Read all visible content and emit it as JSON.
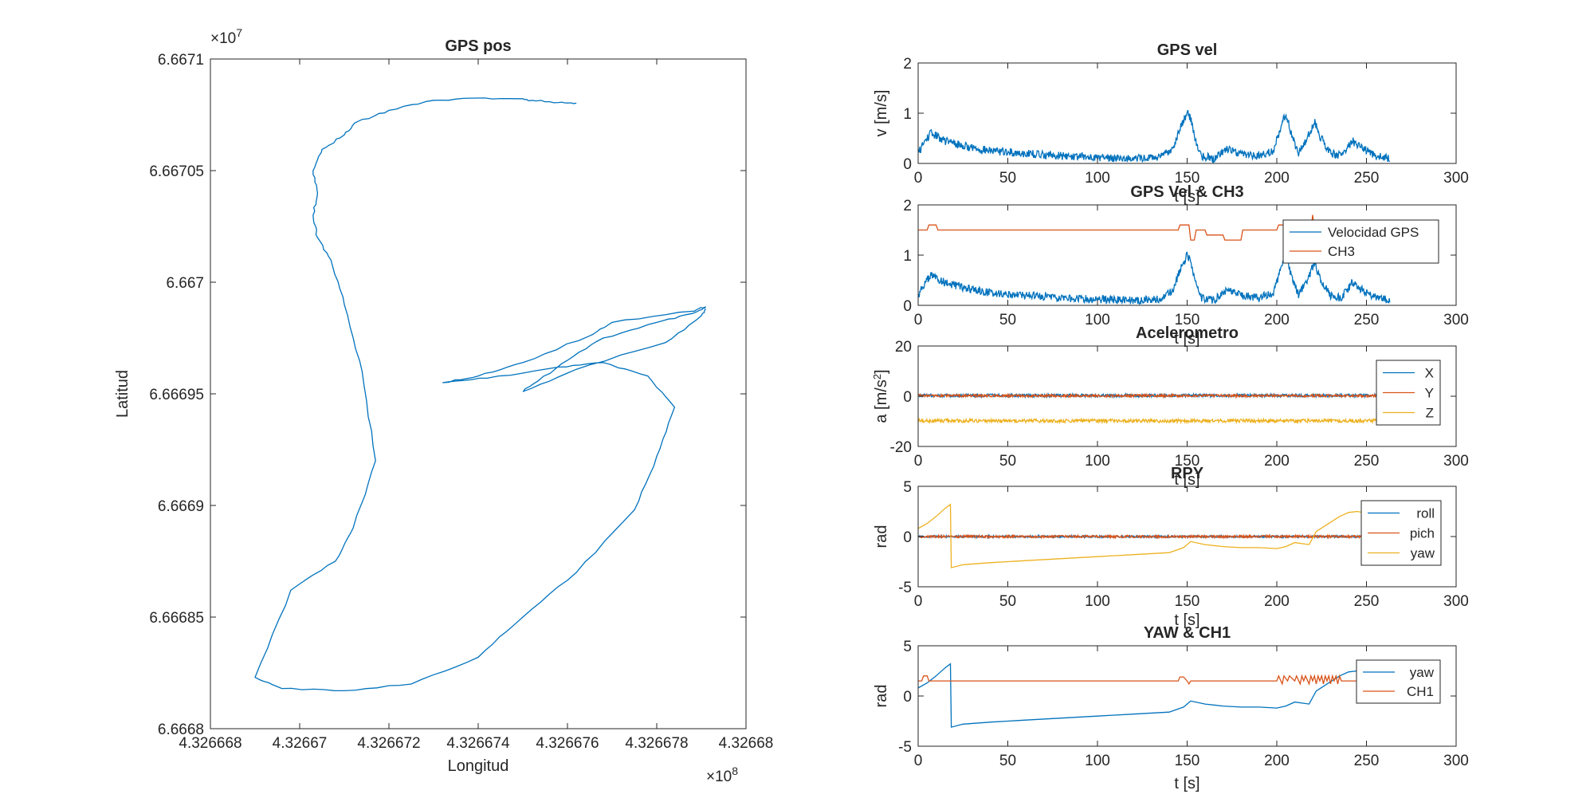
{
  "figure": {
    "colors": {
      "blue": "#0072BD",
      "orange": "#D95319",
      "yellow": "#EDB120",
      "axis": "#262626"
    }
  },
  "chart_data": [
    {
      "id": "gps_pos",
      "type": "line",
      "title": "GPS pos",
      "xlabel": "Longitud",
      "ylabel": "Latitud",
      "x_exponent_label": "×10",
      "x_exponent_power": "8",
      "y_exponent_label": "×10",
      "y_exponent_power": "7",
      "xlim": [
        4.326668,
        4.32668
      ],
      "ylim": [
        6.6668,
        6.6671
      ],
      "xticks": [
        4.326668,
        4.32667,
        4.326672,
        4.326674,
        4.326676,
        4.326678,
        4.32668
      ],
      "xtick_labels": [
        "4.326668",
        "4.32667",
        "4.326672",
        "4.326674",
        "4.326676",
        "4.326678",
        "4.32668"
      ],
      "yticks": [
        6.6668,
        6.66685,
        6.6669,
        6.66695,
        6.667,
        6.66705,
        6.6671
      ],
      "ytick_labels": [
        "6.6668",
        "6.66685",
        "6.6669",
        "6.66695",
        "6.667",
        "6.66705",
        "6.6671"
      ],
      "series": [
        {
          "color": "blue",
          "x": [
            4.3266762,
            4.3266758,
            4.3266752,
            4.326675,
            4.326674,
            4.326673,
            4.326672,
            4.3266713,
            4.326671,
            4.3266705,
            4.3266703,
            4.3266704,
            4.3266703,
            4.3266704,
            4.3266707,
            4.326671,
            4.3266714,
            4.3266717,
            4.3266712,
            4.3266708,
            4.3266698,
            4.326669,
            4.3266696,
            4.326671,
            4.3266725,
            4.326674,
            4.326675,
            4.3266762,
            4.3266775,
            4.326678,
            4.3266784,
            4.3266778,
            4.3266768,
            4.3266758,
            4.3266742,
            4.3266732,
            4.326674,
            4.326675,
            4.3266765,
            4.326677,
            4.3266788,
            4.3266791,
            4.3266788,
            4.326678,
            4.3266768,
            4.326676,
            4.3266752,
            4.326675,
            4.3266762,
            4.3266782,
            4.326679,
            4.3266791
          ],
          "y": [
            6.6670802,
            6.6670805,
            6.6670815,
            6.6670822,
            6.6670825,
            6.6670815,
            6.667077,
            6.667072,
            6.667066,
            6.6670595,
            6.66705,
            6.66704,
            6.66703,
            6.66702,
            6.66701,
            6.66699,
            6.66696,
            6.66692,
            6.66689,
            6.666875,
            6.666862,
            6.666823,
            6.666818,
            6.666817,
            6.66682,
            6.666832,
            6.66685,
            6.66687,
            6.666898,
            6.666922,
            6.666944,
            6.666958,
            6.666964,
            6.666962,
            6.666957,
            6.666955,
            6.666958,
            6.666964,
            6.666976,
            6.666982,
            6.666987,
            6.666989,
            6.666986,
            6.666982,
            6.666975,
            6.666965,
            6.666954,
            6.666951,
            6.666961,
            6.666973,
            6.666985,
            6.666988
          ]
        }
      ]
    },
    {
      "id": "gps_vel",
      "type": "line",
      "title": "GPS vel",
      "xlabel": "t [s]",
      "ylabel": "v [m/s]",
      "xlim": [
        0,
        300
      ],
      "ylim": [
        0,
        2
      ],
      "xticks": [
        0,
        50,
        100,
        150,
        200,
        250,
        300
      ],
      "xtick_labels": [
        "0",
        "50",
        "100",
        "150",
        "200",
        "250",
        "300"
      ],
      "yticks": [
        0,
        1,
        2
      ],
      "ytick_labels": [
        "0",
        "1",
        "2"
      ],
      "series": [
        {
          "color": "blue",
          "noise": 0.08,
          "x": [
            0,
            3,
            7,
            10,
            15,
            25,
            40,
            60,
            80,
            100,
            120,
            135,
            142,
            146,
            150,
            152,
            155,
            158,
            165,
            172,
            180,
            190,
            198,
            203,
            205,
            208,
            212,
            217,
            221,
            224,
            230,
            236,
            242,
            248,
            255,
            263
          ],
          "y": [
            0.2,
            0.4,
            0.6,
            0.55,
            0.45,
            0.35,
            0.25,
            0.2,
            0.15,
            0.12,
            0.1,
            0.12,
            0.3,
            0.7,
            1.0,
            0.9,
            0.4,
            0.15,
            0.1,
            0.3,
            0.2,
            0.15,
            0.25,
            0.8,
            1.0,
            0.6,
            0.2,
            0.5,
            0.85,
            0.55,
            0.2,
            0.15,
            0.45,
            0.3,
            0.15,
            0.1
          ]
        }
      ]
    },
    {
      "id": "gps_vel_ch3",
      "type": "line",
      "title": "GPS Vel & CH3",
      "xlabel": "t [s]",
      "xlim": [
        0,
        300
      ],
      "ylim": [
        0,
        2
      ],
      "xticks": [
        0,
        50,
        100,
        150,
        200,
        250,
        300
      ],
      "xtick_labels": [
        "0",
        "50",
        "100",
        "150",
        "200",
        "250",
        "300"
      ],
      "yticks": [
        0,
        1,
        2
      ],
      "ytick_labels": [
        "0",
        "1",
        "2"
      ],
      "legend_position": "top-right",
      "series": [
        {
          "name": "Velocidad GPS",
          "color": "blue",
          "noise": 0.08,
          "x": [
            0,
            3,
            7,
            10,
            15,
            25,
            40,
            60,
            80,
            100,
            120,
            135,
            142,
            146,
            150,
            152,
            155,
            158,
            165,
            172,
            180,
            190,
            198,
            203,
            205,
            208,
            212,
            217,
            221,
            224,
            230,
            236,
            242,
            248,
            255,
            263
          ],
          "y": [
            0.2,
            0.4,
            0.6,
            0.55,
            0.45,
            0.35,
            0.25,
            0.2,
            0.15,
            0.12,
            0.1,
            0.12,
            0.3,
            0.7,
            1.0,
            0.9,
            0.4,
            0.15,
            0.1,
            0.3,
            0.2,
            0.15,
            0.25,
            0.8,
            1.0,
            0.6,
            0.2,
            0.5,
            0.85,
            0.55,
            0.2,
            0.15,
            0.45,
            0.3,
            0.15,
            0.1
          ]
        },
        {
          "name": "CH3",
          "color": "orange",
          "x": [
            0,
            5,
            6,
            10,
            11,
            145,
            146,
            151,
            152,
            154,
            155,
            160,
            161,
            170,
            171,
            180,
            181,
            200,
            201,
            215,
            216,
            219,
            220,
            221,
            263
          ],
          "y": [
            1.5,
            1.5,
            1.6,
            1.6,
            1.5,
            1.5,
            1.6,
            1.6,
            1.3,
            1.3,
            1.5,
            1.5,
            1.4,
            1.4,
            1.3,
            1.3,
            1.5,
            1.5,
            1.6,
            1.6,
            1.5,
            1.5,
            1.8,
            1.5,
            1.5
          ]
        }
      ]
    },
    {
      "id": "acelerometro",
      "type": "line",
      "title": "Acelerometro",
      "xlabel": "t [s]",
      "ylabel": "a [m/s",
      "ylabel_sup": "2",
      "ylabel_end": "]",
      "xlim": [
        0,
        300
      ],
      "ylim": [
        -20,
        20
      ],
      "xticks": [
        0,
        50,
        100,
        150,
        200,
        250,
        300
      ],
      "xtick_labels": [
        "0",
        "50",
        "100",
        "150",
        "200",
        "250",
        "300"
      ],
      "yticks": [
        -20,
        0,
        20
      ],
      "ytick_labels": [
        "-20",
        "0",
        "20"
      ],
      "legend_position": "right",
      "series": [
        {
          "name": "X",
          "color": "blue",
          "noise": 0.6,
          "x": [
            0,
            256
          ],
          "y": [
            0.3,
            0.3
          ]
        },
        {
          "name": "Y",
          "color": "orange",
          "noise": 0.5,
          "x": [
            0,
            256
          ],
          "y": [
            0.2,
            0.2
          ]
        },
        {
          "name": "Z",
          "color": "yellow",
          "noise": 0.7,
          "x": [
            0,
            256
          ],
          "y": [
            -9.8,
            -9.8
          ]
        }
      ]
    },
    {
      "id": "rpy",
      "type": "line",
      "title": "RPY",
      "xlabel": "t [s]",
      "ylabel": "rad",
      "xlim": [
        0,
        300
      ],
      "ylim": [
        -5,
        5
      ],
      "xticks": [
        0,
        50,
        100,
        150,
        200,
        250,
        300
      ],
      "xtick_labels": [
        "0",
        "50",
        "100",
        "150",
        "200",
        "250",
        "300"
      ],
      "yticks": [
        -5,
        0,
        5
      ],
      "ytick_labels": [
        "-5",
        "0",
        "5"
      ],
      "legend_position": "right",
      "series": [
        {
          "name": "roll",
          "color": "blue",
          "noise": 0.1,
          "x": [
            0,
            256
          ],
          "y": [
            0,
            0
          ]
        },
        {
          "name": "pich",
          "color": "orange",
          "noise": 0.12,
          "x": [
            0,
            256
          ],
          "y": [
            0,
            0
          ]
        },
        {
          "name": "yaw",
          "color": "yellow",
          "x": [
            0,
            5,
            10,
            15,
            18,
            18.5,
            25,
            40,
            60,
            80,
            100,
            120,
            140,
            148,
            152,
            160,
            170,
            180,
            190,
            200,
            205,
            210,
            218,
            222,
            228,
            235,
            240,
            245,
            250,
            255
          ],
          "y": [
            0.8,
            1.3,
            2.0,
            2.8,
            3.2,
            -3.1,
            -2.8,
            -2.6,
            -2.4,
            -2.2,
            -2.0,
            -1.8,
            -1.6,
            -1.1,
            -0.5,
            -0.8,
            -1.0,
            -1.1,
            -1.1,
            -1.2,
            -1.0,
            -0.6,
            -0.8,
            0.5,
            1.2,
            2.0,
            2.4,
            2.5,
            2.3,
            2.1
          ]
        }
      ]
    },
    {
      "id": "yaw_ch1",
      "type": "line",
      "title": "YAW & CH1",
      "xlabel": "t [s]",
      "ylabel": "rad",
      "xlim": [
        0,
        300
      ],
      "ylim": [
        -5,
        5
      ],
      "xticks": [
        0,
        50,
        100,
        150,
        200,
        250,
        300
      ],
      "xtick_labels": [
        "0",
        "50",
        "100",
        "150",
        "200",
        "250",
        "300"
      ],
      "yticks": [
        -5,
        0,
        5
      ],
      "ytick_labels": [
        "-5",
        "0",
        "5"
      ],
      "legend_position": "top-right",
      "series": [
        {
          "name": "yaw",
          "color": "blue",
          "x": [
            0,
            5,
            10,
            15,
            18,
            18.5,
            25,
            40,
            60,
            80,
            100,
            120,
            140,
            148,
            152,
            160,
            170,
            180,
            190,
            200,
            205,
            210,
            218,
            222,
            228,
            235,
            240,
            245,
            250,
            255
          ],
          "y": [
            0.8,
            1.3,
            2.0,
            2.8,
            3.2,
            -3.1,
            -2.8,
            -2.6,
            -2.4,
            -2.2,
            -2.0,
            -1.8,
            -1.6,
            -1.1,
            -0.5,
            -0.8,
            -1.0,
            -1.1,
            -1.1,
            -1.2,
            -1.0,
            -0.6,
            -0.8,
            0.5,
            1.2,
            2.0,
            2.4,
            2.5,
            2.3,
            2.1
          ]
        },
        {
          "name": "CH1",
          "color": "orange",
          "x": [
            0,
            2,
            3,
            5,
            6,
            145,
            146,
            148,
            150,
            151,
            152,
            200,
            201,
            203,
            204,
            206,
            207,
            210,
            211,
            213,
            214,
            215,
            216,
            218,
            219,
            220,
            221,
            222,
            223,
            224,
            225,
            226,
            227,
            228,
            229,
            230,
            231,
            232,
            233,
            234,
            235,
            236,
            237,
            263
          ],
          "y": [
            1.5,
            1.5,
            2.0,
            2.0,
            1.5,
            1.5,
            1.9,
            1.9,
            1.5,
            1.2,
            1.5,
            1.5,
            2.0,
            1.2,
            2.0,
            1.5,
            2.0,
            1.5,
            2.0,
            1.2,
            2.0,
            1.5,
            2.0,
            1.2,
            2.0,
            1.5,
            2.0,
            1.2,
            2.0,
            1.5,
            2.0,
            1.2,
            2.0,
            1.5,
            2.0,
            1.2,
            2.0,
            1.5,
            2.0,
            1.2,
            2.0,
            1.5,
            1.5,
            1.5
          ]
        }
      ]
    }
  ]
}
